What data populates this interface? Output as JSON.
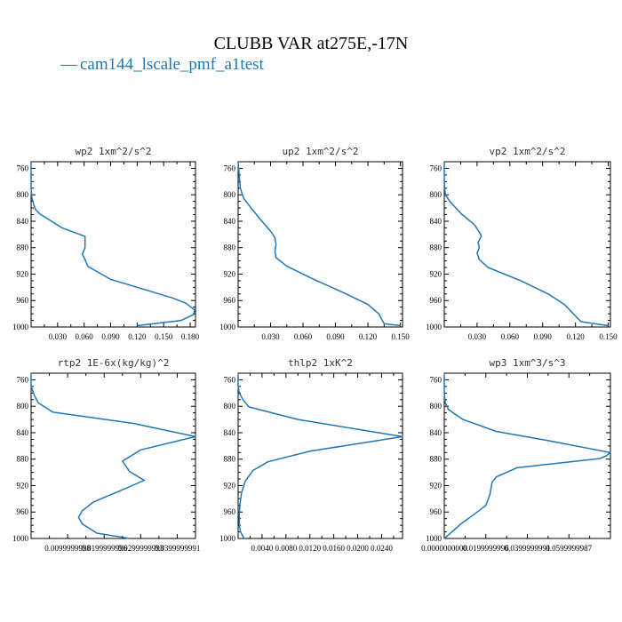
{
  "title": "CLUBB VAR at275E,-17N",
  "legend": {
    "label": "cam144_lscale_pmf_a1test",
    "color": "#1f77b4",
    "marker": "—"
  },
  "chart_data": [
    {
      "type": "line",
      "title": "wp2 1xm^2/s^2",
      "series_name": "cam144_lscale_pmf_a1test",
      "xlim": [
        0,
        0.186
      ],
      "ylim": [
        1000,
        750
      ],
      "xticks": [
        0.03,
        0.06,
        0.09,
        0.12,
        0.15,
        0.18
      ],
      "xtick_labels": [
        "0.030",
        "0.060",
        "0.090",
        "0.120",
        "0.150",
        "0.180"
      ],
      "yticks": [
        760,
        800,
        840,
        880,
        920,
        960,
        1000
      ],
      "ytick_labels": [
        "760",
        "800",
        "840",
        "880",
        "920",
        "960",
        "1000"
      ],
      "x": [
        0.0,
        0.0,
        0.0,
        0.001,
        0.003,
        0.005,
        0.01,
        0.035,
        0.061,
        0.061,
        0.058,
        0.061,
        0.064,
        0.09,
        0.13,
        0.16,
        0.175,
        0.185,
        0.184,
        0.17,
        0.12
      ],
      "y": [
        750,
        770,
        790,
        805,
        815,
        822,
        829,
        850,
        863,
        880,
        890,
        898,
        908,
        928,
        944,
        956,
        964,
        974,
        981,
        990,
        998
      ]
    },
    {
      "type": "line",
      "title": "up2 1xm^2/s^2",
      "series_name": "cam144_lscale_pmf_a1test",
      "xlim": [
        0,
        0.152
      ],
      "ylim": [
        1000,
        750
      ],
      "xticks": [
        0.03,
        0.06,
        0.09,
        0.12,
        0.15
      ],
      "xtick_labels": [
        "0.030",
        "0.060",
        "0.090",
        "0.120",
        "0.150"
      ],
      "yticks": [
        760,
        800,
        840,
        880,
        920,
        960,
        1000
      ],
      "ytick_labels": [
        "760",
        "800",
        "840",
        "880",
        "920",
        "960",
        "1000"
      ],
      "x": [
        0.0,
        0.001,
        0.002,
        0.005,
        0.012,
        0.022,
        0.03,
        0.034,
        0.035,
        0.034,
        0.035,
        0.045,
        0.07,
        0.1,
        0.12,
        0.13,
        0.135,
        0.15
      ],
      "y": [
        750,
        770,
        790,
        805,
        820,
        840,
        855,
        865,
        875,
        885,
        895,
        908,
        928,
        950,
        966,
        980,
        995,
        998
      ]
    },
    {
      "type": "line",
      "title": "vp2 1xm^2/s^2",
      "series_name": "cam144_lscale_pmf_a1test",
      "xlim": [
        0,
        0.152
      ],
      "ylim": [
        1000,
        750
      ],
      "xticks": [
        0.03,
        0.06,
        0.09,
        0.12,
        0.15
      ],
      "xtick_labels": [
        "0.030",
        "0.060",
        "0.090",
        "0.120",
        "0.150"
      ],
      "yticks": [
        760,
        800,
        840,
        880,
        920,
        960,
        1000
      ],
      "ytick_labels": [
        "760",
        "800",
        "840",
        "880",
        "920",
        "960",
        "1000"
      ],
      "x": [
        0.0,
        0.0,
        0.001,
        0.005,
        0.015,
        0.028,
        0.034,
        0.031,
        0.032,
        0.03,
        0.032,
        0.04,
        0.07,
        0.095,
        0.11,
        0.118,
        0.125,
        0.15
      ],
      "y": [
        750,
        780,
        800,
        810,
        828,
        846,
        862,
        872,
        880,
        888,
        898,
        910,
        930,
        950,
        966,
        980,
        992,
        998
      ]
    },
    {
      "type": "line",
      "title": "rtp2 1E-6x(kg/kg)^2",
      "series_name": "cam144_lscale_pmf_a1test",
      "xlim": [
        0,
        0.045
      ],
      "ylim": [
        1000,
        750
      ],
      "xticks": [
        0.01,
        0.02,
        0.03,
        0.04
      ],
      "xtick_labels": [
        "0.0099999998",
        "0.0199999996",
        "0.0299999993",
        "0.0399999991"
      ],
      "yticks": [
        760,
        800,
        840,
        880,
        920,
        960,
        1000
      ],
      "ytick_labels": [
        "760",
        "800",
        "840",
        "880",
        "920",
        "960",
        "1000"
      ],
      "x": [
        0.0,
        0.0,
        0.001,
        0.002,
        0.006,
        0.028,
        0.045,
        0.03,
        0.025,
        0.027,
        0.031,
        0.026,
        0.017,
        0.014,
        0.013,
        0.014,
        0.018,
        0.027
      ],
      "y": [
        750,
        770,
        785,
        795,
        809,
        826,
        846,
        866,
        883,
        899,
        912,
        924,
        945,
        958,
        968,
        978,
        992,
        1000
      ]
    },
    {
      "type": "line",
      "title": "thlp2 1xK^2",
      "series_name": "cam144_lscale_pmf_a1test",
      "xlim": [
        0,
        0.0275
      ],
      "ylim": [
        1000,
        750
      ],
      "xticks": [
        0.004,
        0.008,
        0.012,
        0.016,
        0.02,
        0.024
      ],
      "xtick_labels": [
        "0.0040",
        "0.0080",
        "0.0120",
        "0.0160",
        "0.0200",
        "0.0240"
      ],
      "yticks": [
        760,
        800,
        840,
        880,
        920,
        960,
        1000
      ],
      "ytick_labels": [
        "760",
        "800",
        "840",
        "880",
        "920",
        "960",
        "1000"
      ],
      "x": [
        0.0,
        0.0,
        0.0002,
        0.0008,
        0.0018,
        0.01,
        0.0275,
        0.012,
        0.005,
        0.0025,
        0.0012,
        0.0006,
        0.0003,
        0.0002,
        0.0002,
        0.0004,
        0.001
      ],
      "y": [
        750,
        770,
        780,
        790,
        801,
        820,
        846,
        868,
        884,
        897,
        913,
        930,
        948,
        965,
        980,
        990,
        1000
      ]
    },
    {
      "type": "line",
      "title": "wp3 1xm^3/s^3",
      "series_name": "cam144_lscale_pmf_a1test",
      "xlim": [
        0,
        0.08
      ],
      "ylim": [
        1000,
        750
      ],
      "xticks": [
        0.0,
        0.02,
        0.04,
        0.06
      ],
      "xtick_labels": [
        "0.0000000000",
        "0.0199999996",
        "0.0399999991",
        "0.0599999987"
      ],
      "yticks": [
        760,
        800,
        840,
        880,
        920,
        960,
        1000
      ],
      "ytick_labels": [
        "760",
        "800",
        "840",
        "880",
        "920",
        "960",
        "1000"
      ],
      "x": [
        0.0,
        0.0,
        0.0005,
        0.002,
        0.009,
        0.025,
        0.05,
        0.08,
        0.078,
        0.075,
        0.035,
        0.025,
        0.023,
        0.022,
        0.02,
        0.015,
        0.008,
        0.003,
        0.0
      ],
      "y": [
        750,
        780,
        795,
        805,
        820,
        838,
        852,
        870,
        875,
        879,
        893,
        907,
        915,
        933,
        950,
        962,
        978,
        992,
        1000
      ]
    }
  ]
}
